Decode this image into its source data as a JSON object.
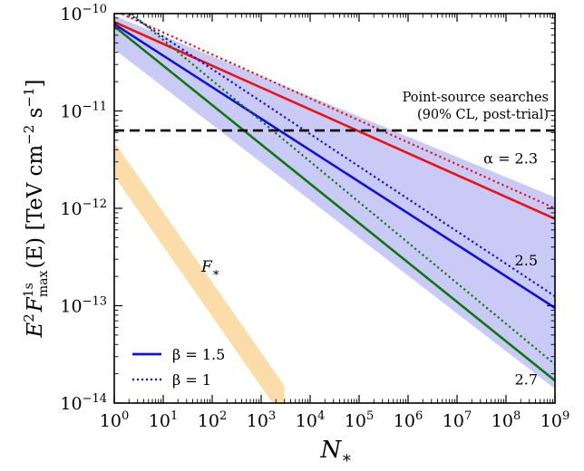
{
  "chart_data": {
    "type": "line",
    "x_scale": "log",
    "y_scale": "log",
    "xlim": [
      1,
      1000000000
    ],
    "ylim": [
      1e-14,
      1e-10
    ],
    "grid": false,
    "x_tick_labels": [
      {
        "base": "10",
        "exp": "0"
      },
      {
        "base": "10",
        "exp": "1"
      },
      {
        "base": "10",
        "exp": "2"
      },
      {
        "base": "10",
        "exp": "3"
      },
      {
        "base": "10",
        "exp": "4"
      },
      {
        "base": "10",
        "exp": "5"
      },
      {
        "base": "10",
        "exp": "6"
      },
      {
        "base": "10",
        "exp": "7"
      },
      {
        "base": "10",
        "exp": "8"
      },
      {
        "base": "10",
        "exp": "9"
      }
    ],
    "y_tick_labels": [
      {
        "base": "10",
        "exp": "−10"
      },
      {
        "base": "10",
        "exp": "−11"
      },
      {
        "base": "10",
        "exp": "−12"
      },
      {
        "base": "10",
        "exp": "−13"
      },
      {
        "base": "10",
        "exp": "−14"
      }
    ],
    "xlabel": {
      "main": "N",
      "sub": "∗"
    },
    "ylabel": {
      "e": "E",
      "e_sup": "2",
      "f": "F",
      "f_sup": "1s",
      "f_sub": "max",
      "arg": "(E)",
      "units": "[TeV cm",
      "units_exp1": "−2",
      "s": " s",
      "units_exp2": "−1",
      "close": "]"
    },
    "series": [
      {
        "alpha": 2.3,
        "beta": 1.5,
        "style": "solid",
        "color": "#ee1111",
        "x": [
          1,
          1000000000
        ],
        "y": [
          8.2e-11,
          7.8e-13
        ]
      },
      {
        "alpha": 2.3,
        "beta": 1,
        "style": "dotted",
        "color": "#ee1111",
        "x": [
          1.45,
          1000000000
        ],
        "y": [
          9.9e-11,
          1e-12
        ]
      },
      {
        "alpha": 2.5,
        "beta": 1.5,
        "style": "solid",
        "color": "#1010dd",
        "x": [
          1,
          1000000000
        ],
        "y": [
          7.8e-11,
          9.5e-14
        ]
      },
      {
        "alpha": 2.5,
        "beta": 1,
        "style": "dotted",
        "color": "#1010dd",
        "x": [
          2.0,
          1000000000
        ],
        "y": [
          9.9e-11,
          1.25e-13
        ]
      },
      {
        "alpha": 2.7,
        "beta": 1.5,
        "style": "solid",
        "color": "#117711",
        "x": [
          1,
          1000000000
        ],
        "y": [
          7.4e-11,
          1.7e-14
        ]
      },
      {
        "alpha": 2.7,
        "beta": 1,
        "style": "dotted",
        "color": "#117711",
        "x": [
          2.3,
          1000000000
        ],
        "y": [
          9.9e-11,
          2.5e-14
        ]
      }
    ],
    "band": {
      "color": "#b8b8f4",
      "upper": {
        "x": [
          1,
          1000000000
        ],
        "y": [
          9.5e-11,
          1.3e-12
        ]
      },
      "lower": {
        "x": [
          1,
          1000000000
        ],
        "y": [
          4.3e-11,
          1.4e-14
        ]
      }
    },
    "f_star_band": {
      "label": "F",
      "label_sub": "∗",
      "color": "#fcd9a0",
      "x": [
        1,
        3000
      ],
      "y": [
        3.2e-12,
        1e-14
      ],
      "width_dex": 0.35
    },
    "point_source_line": {
      "y": 6.3e-12,
      "style": "dashed",
      "label_line1": "Point-source searches",
      "label_line2": "(90% CL, post-trial)"
    },
    "annotations": [
      {
        "text": "α = 2.3",
        "x": 100000000,
        "y": 2.9e-12
      },
      {
        "text": "2.5",
        "x": 100000000,
        "y": 2.6e-13
      },
      {
        "text": "2.7",
        "x": 100000000,
        "y": 1.55e-14
      }
    ],
    "legend": {
      "position": "lower-left",
      "entries": [
        {
          "label": "β = 1.5",
          "style": "solid",
          "color": "#1010dd"
        },
        {
          "label": "β = 1",
          "style": "dotted",
          "color": "#1010dd"
        }
      ]
    }
  }
}
